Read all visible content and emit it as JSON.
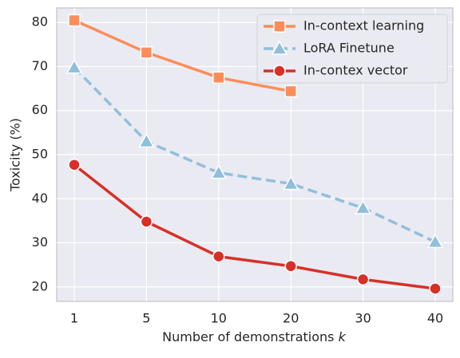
{
  "chart_data": {
    "type": "line",
    "xlabel": "Number of demonstrations",
    "xlabel_var": "k",
    "ylabel": "Toxicity (%)",
    "categories": [
      "1",
      "5",
      "10",
      "20",
      "30",
      "40"
    ],
    "series": [
      {
        "name": "In-context learning",
        "color": "#fc8d59",
        "marker": "square",
        "dash": false,
        "values": [
          80.5,
          73.2,
          67.5,
          64.4,
          null,
          null
        ]
      },
      {
        "name": "LoRA Finetune",
        "color": "#91bfdb",
        "marker": "triangle",
        "dash": true,
        "values": [
          69.8,
          53.0,
          45.9,
          43.4,
          37.9,
          30.2
        ]
      },
      {
        "name": "In-contex vector",
        "color": "#d73027",
        "marker": "circle",
        "dash": false,
        "values": [
          47.7,
          34.8,
          26.9,
          24.7,
          21.7,
          19.6
        ]
      }
    ],
    "ylim": [
      16.7,
      83.3
    ],
    "yticks": [
      20,
      30,
      40,
      50,
      60,
      70,
      80
    ],
    "grid": true,
    "legend": "upper right"
  }
}
